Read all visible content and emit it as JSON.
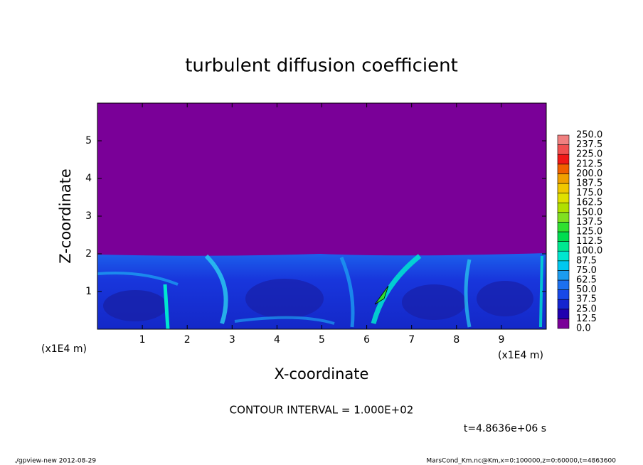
{
  "chart_data": {
    "type": "contour",
    "title": "turbulent diffusion coefficient",
    "x_label": "X-coordinate",
    "y_label": "Z-coordinate",
    "x_unit_left": "(x1E4 m)",
    "x_unit_right": "(x1E4 m)",
    "xlim": [
      0,
      10
    ],
    "xticks": [
      1,
      2,
      3,
      4,
      5,
      6,
      7,
      8,
      9
    ],
    "ylim": [
      0,
      6
    ],
    "yticks": [
      1,
      2,
      3,
      4,
      5
    ],
    "contour_interval": "CONTOUR INTERVAL = 1.000E+02",
    "time_label": "t=4.8636e+06 s",
    "footer_left": "./gpview-new  2012-08-29",
    "footer_right": "MarsCond_Km.nc@Km,x=0:100000,z=0:60000,t=4863600",
    "colorbar": {
      "levels": [
        {
          "value": 0,
          "label": "0.0"
        },
        12.5,
        {
          "value": 25,
          "label": "25.0"
        },
        37.5,
        {
          "value": 50,
          "label": "50.0"
        },
        62.5,
        {
          "value": 75,
          "label": "75.0"
        },
        87.5,
        {
          "value": 100,
          "label": "100.0"
        },
        112.5,
        {
          "value": 125,
          "label": "125.0"
        },
        137.5,
        {
          "value": 150,
          "label": "150.0"
        },
        162.5,
        {
          "value": 175,
          "label": "175.0"
        },
        187.5,
        {
          "value": 200,
          "label": "200.0"
        },
        212.5,
        {
          "value": 225,
          "label": "225.0"
        },
        237.5,
        {
          "value": 250,
          "label": "250.0"
        }
      ],
      "colors": [
        "#7a0098",
        "#2000b0",
        "#1424d0",
        "#1848e8",
        "#1c70f0",
        "#1c9cf0",
        "#00c8f0",
        "#00e6d0",
        "#00e890",
        "#00dc50",
        "#30e030",
        "#80e020",
        "#b0e000",
        "#e0e000",
        "#f0c800",
        "#f0a000",
        "#f06000",
        "#f01818",
        "#f05050",
        "#f08080"
      ]
    }
  }
}
